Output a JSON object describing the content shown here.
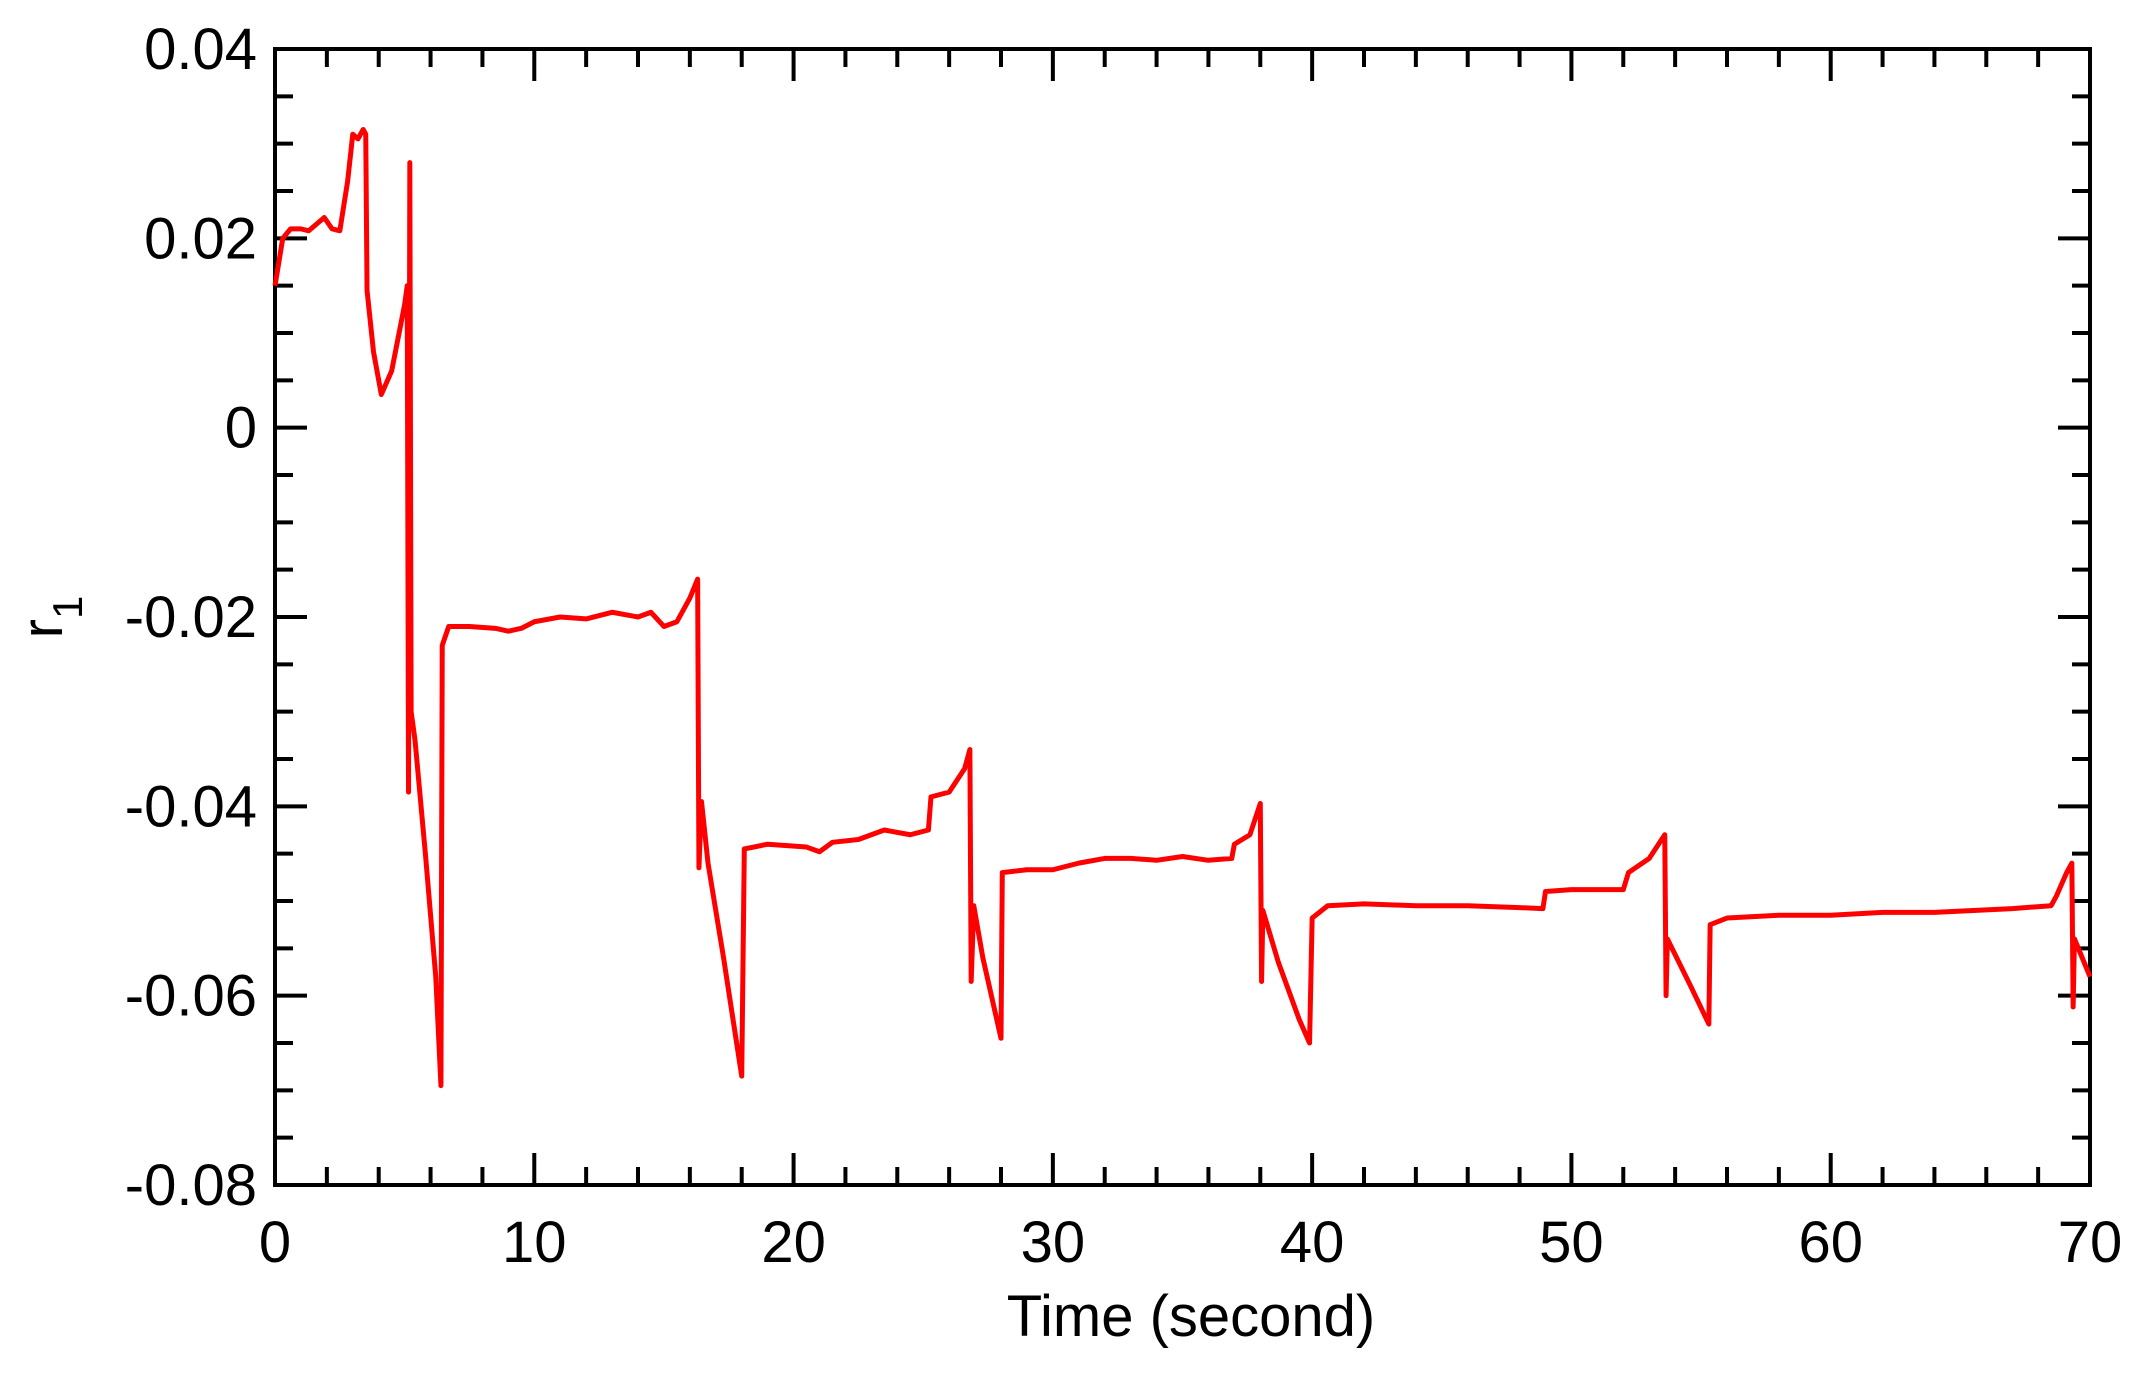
{
  "chart_data": {
    "type": "line",
    "xlabel": "Time (second)",
    "ylabel": "r",
    "ylabel_subscript": "1",
    "xlim": [
      0,
      70
    ],
    "ylim": [
      -0.08,
      0.04
    ],
    "xticks": [
      0,
      10,
      20,
      30,
      40,
      50,
      60,
      70
    ],
    "yticks": [
      -0.08,
      -0.06,
      -0.04,
      -0.02,
      0,
      0.02,
      0.04
    ],
    "xminorticks": [
      2,
      4,
      6,
      8,
      12,
      14,
      16,
      18,
      22,
      24,
      26,
      28,
      32,
      34,
      36,
      38,
      42,
      44,
      46,
      48,
      52,
      54,
      56,
      58,
      62,
      64,
      66,
      68
    ],
    "yminorticks": [
      -0.075,
      -0.07,
      -0.065,
      -0.055,
      -0.05,
      -0.045,
      -0.035,
      -0.03,
      -0.025,
      -0.015,
      -0.01,
      -0.005,
      0.005,
      0.01,
      0.015,
      0.025,
      0.03,
      0.035
    ],
    "series": [
      {
        "color": "#ff0000",
        "x": [
          0,
          0.3,
          0.6,
          1.0,
          1.3,
          1.6,
          1.9,
          2.2,
          2.5,
          2.8,
          3.0,
          3.2,
          3.4,
          3.5,
          3.55,
          3.8,
          4.1,
          4.5,
          5.0,
          5.1,
          5.15,
          5.2,
          5.25,
          5.4,
          5.8,
          6.2,
          6.4,
          6.45,
          6.7,
          7.5,
          8.5,
          9.0,
          9.5,
          10.0,
          11,
          12,
          13,
          14,
          14.5,
          15,
          15.5,
          16.0,
          16.3,
          16.35,
          16.45,
          16.7,
          17.3,
          18.0,
          18.1,
          19,
          20.5,
          21,
          21.5,
          22.5,
          23.5,
          24.5,
          25.2,
          25.3,
          26,
          26.6,
          26.8,
          26.85,
          26.95,
          27.3,
          28.0,
          28.05,
          29,
          30,
          31,
          32,
          33,
          34,
          35,
          36,
          36.9,
          37.0,
          37.6,
          38.0,
          38.05,
          38.1,
          38.7,
          39.5,
          39.9,
          40.0,
          40.6,
          42,
          44,
          46,
          48,
          48.9,
          49.0,
          50,
          52.0,
          52.2,
          53.0,
          53.6,
          53.65,
          53.7,
          54.6,
          55.3,
          55.35,
          56,
          58,
          60,
          62,
          64,
          65.5,
          67,
          68.5,
          68.7,
          69.1,
          69.3,
          69.35,
          69.4,
          70
        ],
        "values": [
          0.015,
          0.02,
          0.021,
          0.021,
          0.0208,
          0.0215,
          0.0222,
          0.021,
          0.0208,
          0.026,
          0.031,
          0.0305,
          0.0315,
          0.031,
          0.0145,
          0.008,
          0.0035,
          0.006,
          0.013,
          0.015,
          -0.0385,
          0.028,
          -0.03,
          -0.033,
          -0.045,
          -0.058,
          -0.0695,
          -0.023,
          -0.021,
          -0.021,
          -0.0212,
          -0.0215,
          -0.0212,
          -0.0205,
          -0.02,
          -0.0202,
          -0.0195,
          -0.02,
          -0.0195,
          -0.021,
          -0.0205,
          -0.018,
          -0.016,
          -0.0465,
          -0.0395,
          -0.046,
          -0.056,
          -0.0685,
          -0.0445,
          -0.044,
          -0.0443,
          -0.0448,
          -0.0438,
          -0.0435,
          -0.0425,
          -0.043,
          -0.0425,
          -0.039,
          -0.0385,
          -0.036,
          -0.034,
          -0.0585,
          -0.0505,
          -0.056,
          -0.0645,
          -0.047,
          -0.0467,
          -0.0467,
          -0.046,
          -0.0455,
          -0.0455,
          -0.0457,
          -0.0453,
          -0.0457,
          -0.0455,
          -0.044,
          -0.043,
          -0.0397,
          -0.0585,
          -0.051,
          -0.0565,
          -0.0625,
          -0.065,
          -0.0518,
          -0.0505,
          -0.0503,
          -0.0505,
          -0.0505,
          -0.0507,
          -0.0508,
          -0.049,
          -0.0488,
          -0.0488,
          -0.047,
          -0.0455,
          -0.043,
          -0.06,
          -0.054,
          -0.059,
          -0.063,
          -0.0525,
          -0.0518,
          -0.0515,
          -0.0515,
          -0.0512,
          -0.0512,
          -0.051,
          -0.0508,
          -0.0505,
          -0.0495,
          -0.047,
          -0.046,
          -0.0612,
          -0.054,
          -0.058
        ]
      }
    ]
  }
}
